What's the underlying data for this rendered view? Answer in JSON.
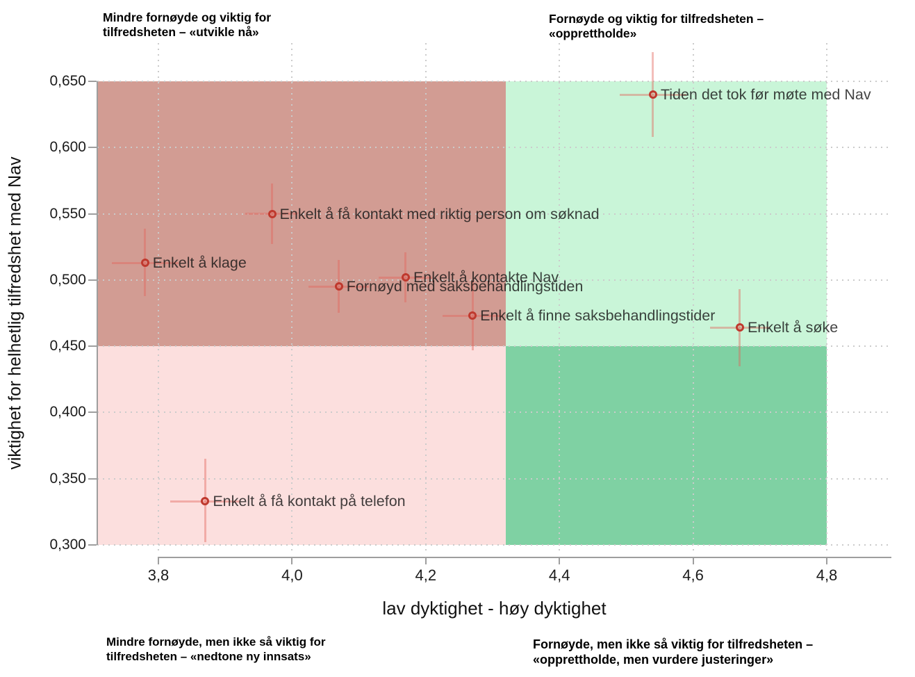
{
  "chart_data": {
    "type": "scatter",
    "title": "",
    "xlabel": "lav dyktighet - høy dyktighet",
    "ylabel": "viktighet for helhetlig tilfredshet med Nav",
    "xlim": [
      3.71,
      4.9
    ],
    "ylim": [
      0.3,
      0.679
    ],
    "grid": "dotted",
    "legend": "none",
    "x_ticks": [
      3.8,
      4.0,
      4.2,
      4.4,
      4.6,
      4.8
    ],
    "x_tick_labels": [
      "3,8",
      "4,0",
      "4,2",
      "4,4",
      "4,6",
      "4,8"
    ],
    "y_ticks": [
      0.65,
      0.6,
      0.55,
      0.5,
      0.45,
      0.4,
      0.35,
      0.3
    ],
    "y_tick_labels": [
      "0,650",
      "0,600",
      "0,550",
      "0,500",
      "0,450",
      "0,400",
      "0,350",
      "0,300"
    ],
    "quadrants": {
      "x_split": 4.32,
      "y_split": 0.45,
      "x_range": [
        3.71,
        4.8
      ],
      "y_range": [
        0.3,
        0.65
      ],
      "colors": {
        "top_left": "#d29c93",
        "top_right": "#c9f5d8",
        "bottom_left": "#fcdfde",
        "bottom_right": "#7fd1a3"
      }
    },
    "annotations": {
      "top_left": {
        "line1": "Mindre fornøyde og viktig for",
        "line2": "tilfredsheten – «utvikle nå»"
      },
      "top_right": {
        "line1": "Fornøyde og viktig for tilfredsheten –",
        "line2": "«opprettholde»"
      },
      "bottom_left": {
        "line1": "Mindre fornøyde, men ikke så viktig for",
        "line2": "tilfredsheten – «nedtone ny innsats»"
      },
      "bottom_right": {
        "line1": "Fornøyde, men ikke så viktig for tilfredsheten –",
        "line2": "«opprettholde, men vurdere justeringer»"
      }
    },
    "points": [
      {
        "label": "Tiden det tok før møte med Nav",
        "x": 4.54,
        "y": 0.64,
        "x_err": [
          4.49,
          4.59
        ],
        "y_err": [
          0.608,
          0.672
        ]
      },
      {
        "label": "Enkelt å få kontakt med riktig person om søknad",
        "x": 3.97,
        "y": 0.55,
        "x_err": [
          3.93,
          4.01
        ],
        "y_err": [
          0.527,
          0.573
        ]
      },
      {
        "label": "Enkelt å klage",
        "x": 3.78,
        "y": 0.513,
        "x_err": [
          3.73,
          3.83
        ],
        "y_err": [
          0.488,
          0.539
        ]
      },
      {
        "label": "Enkelt å kontakte Nav",
        "x": 4.17,
        "y": 0.502,
        "x_err": [
          4.13,
          4.21
        ],
        "y_err": [
          0.483,
          0.521
        ]
      },
      {
        "label": "Fornøyd med saksbehandlingstiden",
        "x": 4.07,
        "y": 0.495,
        "x_err": [
          4.025,
          4.115
        ],
        "y_err": [
          0.475,
          0.515
        ]
      },
      {
        "label": "Enkelt å finne saksbehandlingstider",
        "x": 4.27,
        "y": 0.473,
        "x_err": [
          4.225,
          4.315
        ],
        "y_err": [
          0.447,
          0.499
        ]
      },
      {
        "label": "Enkelt å søke",
        "x": 4.67,
        "y": 0.464,
        "x_err": [
          4.625,
          4.715
        ],
        "y_err": [
          0.435,
          0.493
        ]
      },
      {
        "label": "Enkelt å få kontakt på telefon",
        "x": 3.87,
        "y": 0.333,
        "x_err": [
          3.818,
          3.922
        ],
        "y_err": [
          0.302,
          0.365
        ]
      }
    ],
    "style": {
      "marker_color": "#bf392e",
      "error_bar_color": "#e2645a",
      "gridline_color": "#cbcbcb",
      "axis_line_color": "#9e9e9e"
    }
  }
}
